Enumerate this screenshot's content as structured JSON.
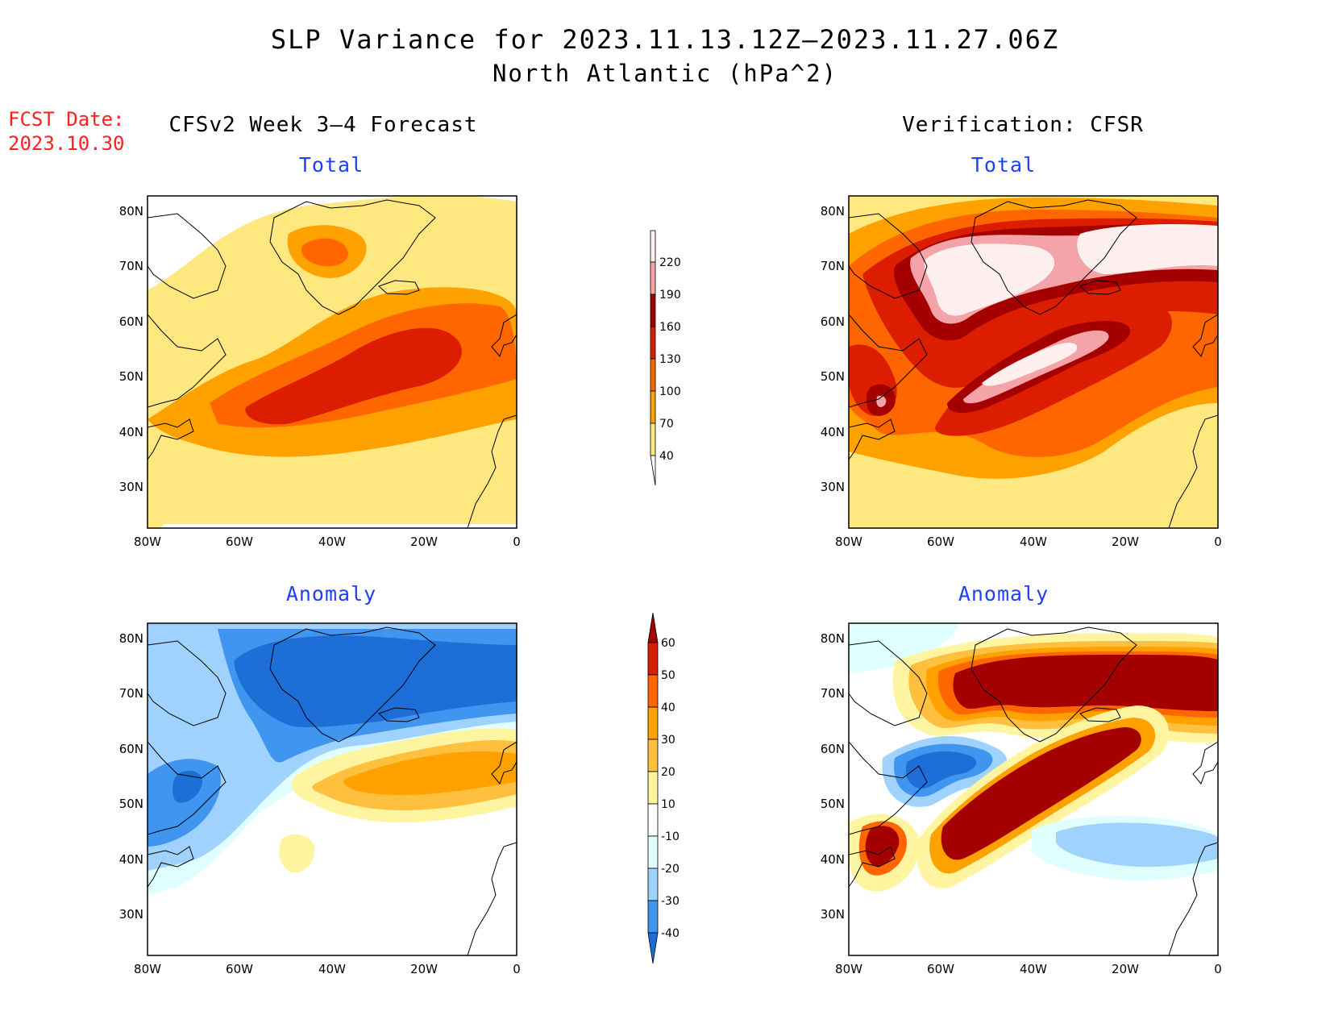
{
  "title": {
    "line1": "SLP Variance for 2023.11.13.12Z–2023.11.27.06Z",
    "line2": "North Atlantic (hPa^2)"
  },
  "fcst": {
    "label": "FCST Date:",
    "date": "2023.10.30"
  },
  "columns": {
    "left": "CFSv2 Week 3–4 Forecast",
    "right": "Verification: CFSR"
  },
  "panels": {
    "total_label": "Total",
    "anomaly_label": "Anomaly"
  },
  "axes": {
    "lat_labels": [
      "80N",
      "70N",
      "60N",
      "50N",
      "40N",
      "30N"
    ],
    "lon_labels": [
      "80W",
      "60W",
      "40W",
      "20W",
      "0"
    ]
  },
  "colorbars": {
    "total": {
      "levels": [
        "220",
        "190",
        "160",
        "130",
        "100",
        "70",
        "40"
      ],
      "colors": [
        "#fff0f0",
        "#f4a3a8",
        "#a50000",
        "#dd1d00",
        "#ff6600",
        "#ffa200",
        "#ffe880"
      ]
    },
    "anomaly": {
      "levels": [
        "60",
        "50",
        "40",
        "30",
        "20",
        "10",
        "-10",
        "-20",
        "-30",
        "-40"
      ],
      "colors": [
        "#a50000",
        "#dd1d00",
        "#ff6600",
        "#ffa200",
        "#ffc040",
        "#fff5a0",
        "#ffffff",
        "#e0ffff",
        "#a0d2ff",
        "#4095f0",
        "#1e6ed8"
      ]
    }
  }
}
